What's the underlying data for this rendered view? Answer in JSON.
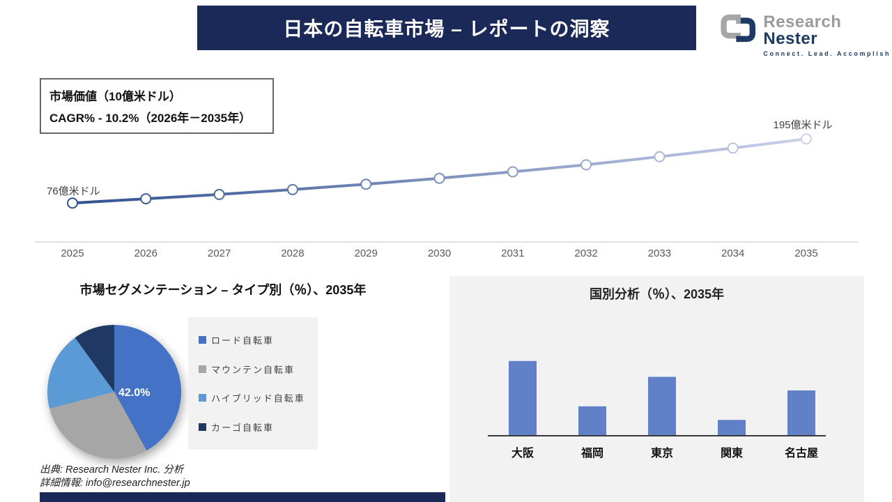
{
  "page": {
    "title": "日本の自転車市場 – レポートの洞察"
  },
  "logo": {
    "brand_primary": "Research",
    "brand_secondary": "Nester",
    "tagline": "Connect. Lead. Accomplish"
  },
  "info_box": {
    "line1": "市場価値（10億米ドル）",
    "line2": "CAGR% - 10.2%（2026年－2035年）"
  },
  "colors": {
    "navy": "#1a2957",
    "line_gradient_start": "#30508e",
    "line_gradient_end": "#c9d1ea",
    "axis_gray": "#d9d9d9",
    "bar_blue": "#6081c8",
    "pie_colors": [
      "#4472c4",
      "#a6a6a6",
      "#5b9bd5",
      "#203864"
    ],
    "panel_gray": "#f2f2f2"
  },
  "chart_data": [
    {
      "id": "market-value-line",
      "type": "line",
      "title": "市場価値（10億米ドル）",
      "x": [
        "2025",
        "2026",
        "2027",
        "2028",
        "2029",
        "2030",
        "2031",
        "2032",
        "2033",
        "2034",
        "2035"
      ],
      "values": [
        7.6,
        8.4,
        9.2,
        10.1,
        11.1,
        12.2,
        13.4,
        14.7,
        16.2,
        17.8,
        19.5
      ],
      "first_point_label": "76億米ドル",
      "last_point_label": "195億米ドル",
      "ylabel": "10億米ドル",
      "ylim": [
        0,
        22
      ],
      "grid": false,
      "legend_position": "none"
    },
    {
      "id": "segmentation-pie",
      "type": "pie",
      "title": "市場セグメンテーション – タイプ別（％）、2035年",
      "labels": [
        "ロード自転車",
        "マウンテン自転車",
        "ハイブリッド自転車",
        "カーゴ自転車"
      ],
      "values": [
        42.0,
        29.0,
        19.0,
        10.0
      ],
      "shown_data_label": "42.0%",
      "legend_position": "right"
    },
    {
      "id": "country-analysis-bar",
      "type": "bar",
      "title": "国別分析（％）、2035年",
      "categories": [
        "大阪",
        "福岡",
        "東京",
        "関東",
        "名古屋"
      ],
      "values": [
        33,
        13,
        26,
        7,
        20
      ],
      "ylim": [
        0,
        40
      ],
      "grid": false,
      "legend_position": "none"
    }
  ],
  "footer": {
    "source": "出典: Research Nester Inc. 分析",
    "contact": "詳細情報: info@researchnester.jp"
  }
}
